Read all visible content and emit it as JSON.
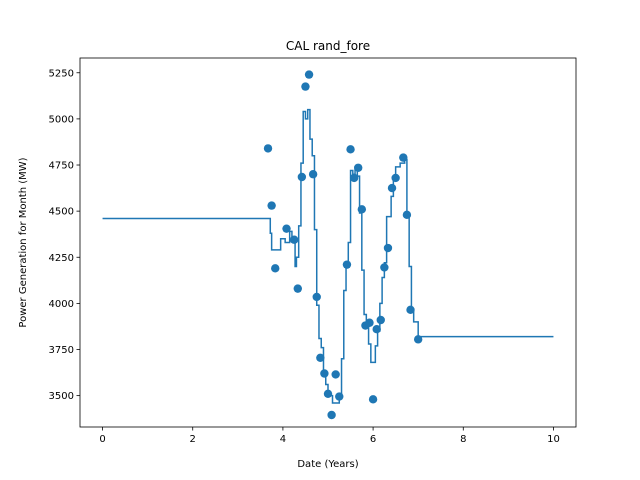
{
  "chart_data": {
    "type": "scatter",
    "title": "CAL rand_fore",
    "xlabel": "Date (Years)",
    "ylabel": "Power Generation for Month (MW)",
    "xlim": [
      -0.5,
      10.5
    ],
    "ylim": [
      3330,
      5330
    ],
    "xticks": [
      0,
      2,
      4,
      6,
      8,
      10
    ],
    "yticks": [
      3500,
      3750,
      4000,
      4250,
      4500,
      4750,
      5000,
      5250
    ],
    "grid": false,
    "legend": "none",
    "colors": {
      "series": "#1f77b4"
    },
    "series": [
      {
        "kind": "scatter",
        "points": [
          [
            3.67,
            4840
          ],
          [
            3.75,
            4530
          ],
          [
            3.83,
            4190
          ],
          [
            4.08,
            4405
          ],
          [
            4.25,
            4345
          ],
          [
            4.33,
            4080
          ],
          [
            4.42,
            4685
          ],
          [
            4.5,
            5175
          ],
          [
            4.58,
            5240
          ],
          [
            4.67,
            4700
          ],
          [
            4.75,
            4035
          ],
          [
            4.83,
            3705
          ],
          [
            4.92,
            3620
          ],
          [
            5.0,
            3510
          ],
          [
            5.08,
            3395
          ],
          [
            5.17,
            3615
          ],
          [
            5.25,
            3495
          ],
          [
            5.42,
            4210
          ],
          [
            5.5,
            4835
          ],
          [
            5.58,
            4680
          ],
          [
            5.67,
            4735
          ],
          [
            5.75,
            4510
          ],
          [
            5.83,
            3880
          ],
          [
            5.92,
            3895
          ],
          [
            6.0,
            3480
          ],
          [
            6.08,
            3860
          ],
          [
            6.17,
            3910
          ],
          [
            6.25,
            4195
          ],
          [
            6.33,
            4300
          ],
          [
            6.42,
            4625
          ],
          [
            6.5,
            4680
          ],
          [
            6.67,
            4790
          ],
          [
            6.75,
            4480
          ],
          [
            6.83,
            3965
          ],
          [
            7.0,
            3805
          ]
        ]
      },
      {
        "kind": "step",
        "points": [
          [
            0,
            4460
          ],
          [
            3.67,
            4460
          ],
          [
            3.72,
            4380
          ],
          [
            3.75,
            4290
          ],
          [
            3.92,
            4290
          ],
          [
            3.95,
            4350
          ],
          [
            4.05,
            4330
          ],
          [
            4.1,
            4330
          ],
          [
            4.15,
            4390
          ],
          [
            4.2,
            4350
          ],
          [
            4.27,
            4200
          ],
          [
            4.3,
            4250
          ],
          [
            4.35,
            4420
          ],
          [
            4.4,
            4760
          ],
          [
            4.45,
            5040
          ],
          [
            4.5,
            5000
          ],
          [
            4.55,
            5050
          ],
          [
            4.6,
            4890
          ],
          [
            4.65,
            4800
          ],
          [
            4.7,
            4400
          ],
          [
            4.75,
            3990
          ],
          [
            4.8,
            3810
          ],
          [
            4.85,
            3760
          ],
          [
            4.9,
            3620
          ],
          [
            4.95,
            3560
          ],
          [
            5.0,
            3500
          ],
          [
            5.1,
            3460
          ],
          [
            5.25,
            3500
          ],
          [
            5.3,
            3700
          ],
          [
            5.35,
            4070
          ],
          [
            5.4,
            4210
          ],
          [
            5.45,
            4330
          ],
          [
            5.5,
            4720
          ],
          [
            5.55,
            4700
          ],
          [
            5.6,
            4740
          ],
          [
            5.65,
            4690
          ],
          [
            5.7,
            4490
          ],
          [
            5.75,
            4180
          ],
          [
            5.8,
            3940
          ],
          [
            5.85,
            3880
          ],
          [
            5.9,
            3780
          ],
          [
            5.95,
            3680
          ],
          [
            6.05,
            3770
          ],
          [
            6.1,
            3850
          ],
          [
            6.15,
            4000
          ],
          [
            6.2,
            4140
          ],
          [
            6.25,
            4220
          ],
          [
            6.3,
            4470
          ],
          [
            6.4,
            4580
          ],
          [
            6.45,
            4670
          ],
          [
            6.5,
            4740
          ],
          [
            6.6,
            4760
          ],
          [
            6.7,
            4780
          ],
          [
            6.75,
            4480
          ],
          [
            6.8,
            4200
          ],
          [
            6.85,
            3970
          ],
          [
            6.9,
            3900
          ],
          [
            7.0,
            3820
          ],
          [
            10.0,
            3820
          ]
        ]
      }
    ]
  }
}
